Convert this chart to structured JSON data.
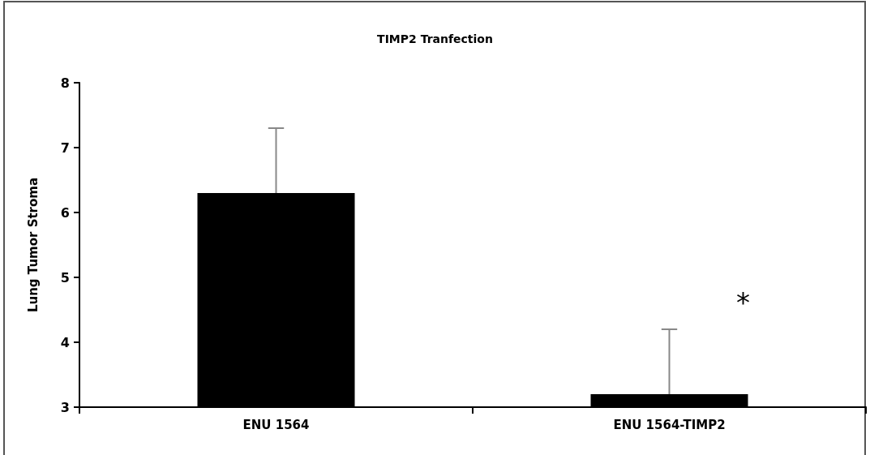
{
  "chart_data": {
    "type": "bar",
    "title": "TIMP2 Tranfection",
    "ylabel": "Lung Tumor Stroma",
    "categories": [
      "ENU 1564",
      "ENU 1564-TIMP2"
    ],
    "values": [
      6.3,
      3.2
    ],
    "color": "#000000",
    "errors": [
      [
        6.3,
        7.3
      ],
      [
        3.2,
        4.2
      ]
    ],
    "ylim": [
      3,
      8
    ],
    "yticks": [
      3,
      4,
      5,
      6,
      7,
      8
    ],
    "grid": false,
    "annotations": [
      "*"
    ]
  }
}
